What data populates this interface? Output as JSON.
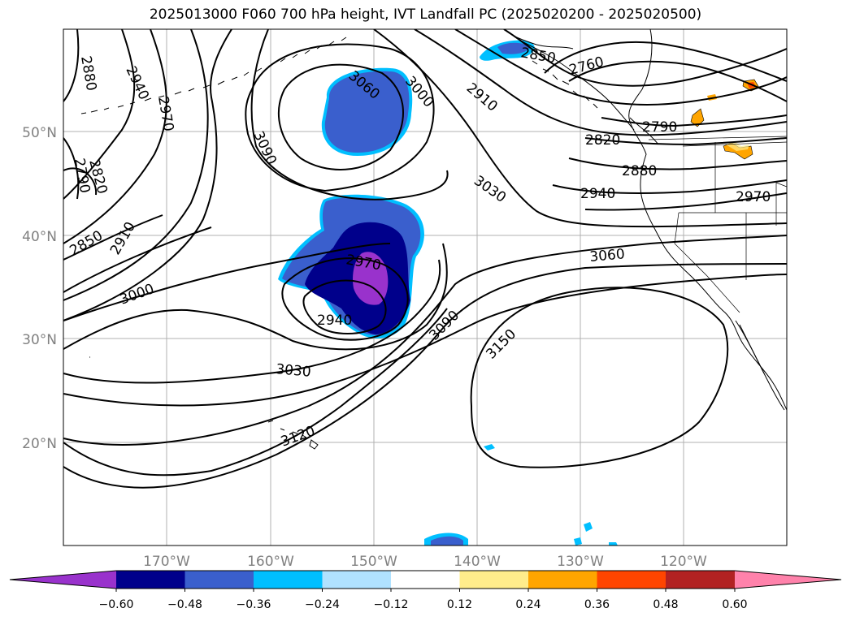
{
  "title": "2025013000 F060 700 hPa height, IVT Landfall PC (2025020200 - 2025020500)",
  "map": {
    "lat_labels": [
      "50°N",
      "40°N",
      "30°N",
      "20°N"
    ],
    "lon_labels": [
      "170°W",
      "160°W",
      "150°W",
      "140°W",
      "130°W",
      "120°W"
    ],
    "contour_labels": [
      "2880",
      "2940",
      "2970",
      "3060",
      "3000",
      "2910",
      "2760",
      "2790",
      "2820",
      "2850",
      "2880",
      "2940",
      "2970",
      "3090",
      "2820",
      "2790",
      "2850",
      "2910",
      "3030",
      "2970",
      "3060",
      "3000",
      "2940",
      "3090",
      "3150",
      "3030",
      "3120"
    ]
  },
  "colorbar": {
    "ticks": [
      "−0.60",
      "−0.48",
      "−0.36",
      "−0.24",
      "−0.12",
      "0.12",
      "0.24",
      "0.36",
      "0.48",
      "0.60"
    ],
    "colors": [
      "#9932cc",
      "#00008b",
      "#3a5fcd",
      "#00bfff",
      "#b0e2ff",
      "#ffffff",
      "#ffec8b",
      "#ffa500",
      "#ff4500",
      "#b22222",
      "#ff82ab"
    ]
  }
}
